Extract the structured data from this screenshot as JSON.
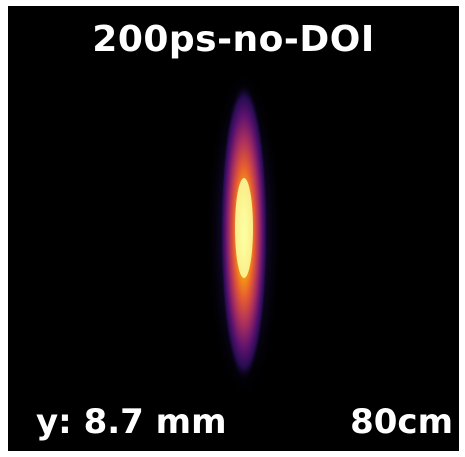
{
  "title": "200ps-no-DOI",
  "left_label": "y: 8.7 mm",
  "right_label": "80cm",
  "colormap": "inferno",
  "background_color": "#000000",
  "text_color": "#ffffff"
}
